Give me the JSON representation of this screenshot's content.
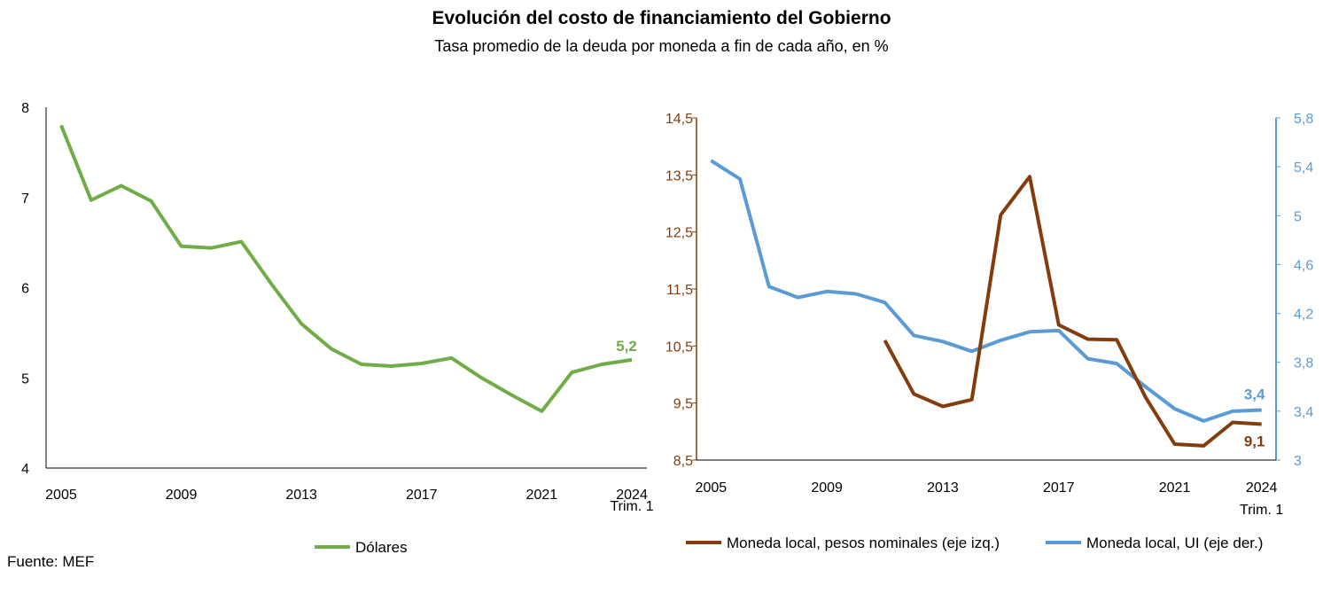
{
  "title": "Evolución del costo de financiamiento del Gobierno",
  "subtitle": "Tasa promedio de la deuda por moneda a fin de cada año, en %",
  "source": "Fuente: MEF",
  "colors": {
    "dolares": "#70AD47",
    "pesos": "#843C0C",
    "ui": "#5B9BD5",
    "axis": "#000000"
  },
  "chart_data": [
    {
      "type": "line",
      "x_tick_labels": [
        "2005",
        "2009",
        "2013",
        "2017",
        "2021",
        "2024"
      ],
      "x_tick_sublabel": "Trim. 1",
      "ylim": [
        4,
        8
      ],
      "y_ticks": [
        "4",
        "5",
        "6",
        "7",
        "8"
      ],
      "legend_position": "bottom",
      "series": [
        {
          "name": "Dólares",
          "x": [
            "2005",
            "2006",
            "2007",
            "2008",
            "2009",
            "2010",
            "2011",
            "2012",
            "2013",
            "2014",
            "2015",
            "2016",
            "2017",
            "2018",
            "2019",
            "2020",
            "2021",
            "2022",
            "2023",
            "2024 Trim. 1"
          ],
          "values": [
            7.8,
            6.97,
            7.13,
            6.96,
            6.46,
            6.44,
            6.51,
            6.04,
            5.6,
            5.32,
            5.15,
            5.13,
            5.16,
            5.22,
            5.0,
            4.81,
            4.63,
            5.06,
            5.15,
            5.2
          ],
          "end_label": "5,2"
        }
      ]
    },
    {
      "type": "line",
      "x_tick_labels": [
        "2005",
        "2009",
        "2013",
        "2017",
        "2021",
        "2024"
      ],
      "x_tick_sublabel": "Trim. 1",
      "y_left": {
        "ylim": [
          8.5,
          14.5
        ],
        "ticks": [
          "8,5",
          "9,5",
          "10,5",
          "11,5",
          "12,5",
          "13,5",
          "14,5"
        ]
      },
      "y_right": {
        "ylim": [
          3,
          5.8
        ],
        "ticks": [
          "3",
          "3,4",
          "3,8",
          "4,2",
          "4,6",
          "5",
          "5,4",
          "5,8"
        ]
      },
      "legend_position": "bottom",
      "series": [
        {
          "name": "Moneda local, pesos nominales (eje izq.)",
          "axis": "left",
          "x": [
            "2011",
            "2012",
            "2013",
            "2014",
            "2015",
            "2016",
            "2017",
            "2018",
            "2019",
            "2020",
            "2021",
            "2022",
            "2023",
            "2024 Trim. 1"
          ],
          "values": [
            10.6,
            9.66,
            9.44,
            9.56,
            12.8,
            13.47,
            10.87,
            10.62,
            10.61,
            9.6,
            8.78,
            8.75,
            9.16,
            9.13
          ],
          "end_label": "9,1"
        },
        {
          "name": "Moneda local, UI (eje der.)",
          "axis": "right",
          "x": [
            "2005",
            "2006",
            "2007",
            "2008",
            "2009",
            "2010",
            "2011",
            "2012",
            "2013",
            "2014",
            "2015",
            "2016",
            "2017",
            "2018",
            "2019",
            "2020",
            "2021",
            "2022",
            "2023",
            "2024 Trim. 1"
          ],
          "values": [
            5.45,
            5.3,
            4.42,
            4.33,
            4.38,
            4.36,
            4.29,
            4.02,
            3.97,
            3.89,
            3.98,
            4.05,
            4.06,
            3.83,
            3.79,
            3.6,
            3.42,
            3.32,
            3.4,
            3.41
          ],
          "end_label": "3,4"
        }
      ]
    }
  ]
}
